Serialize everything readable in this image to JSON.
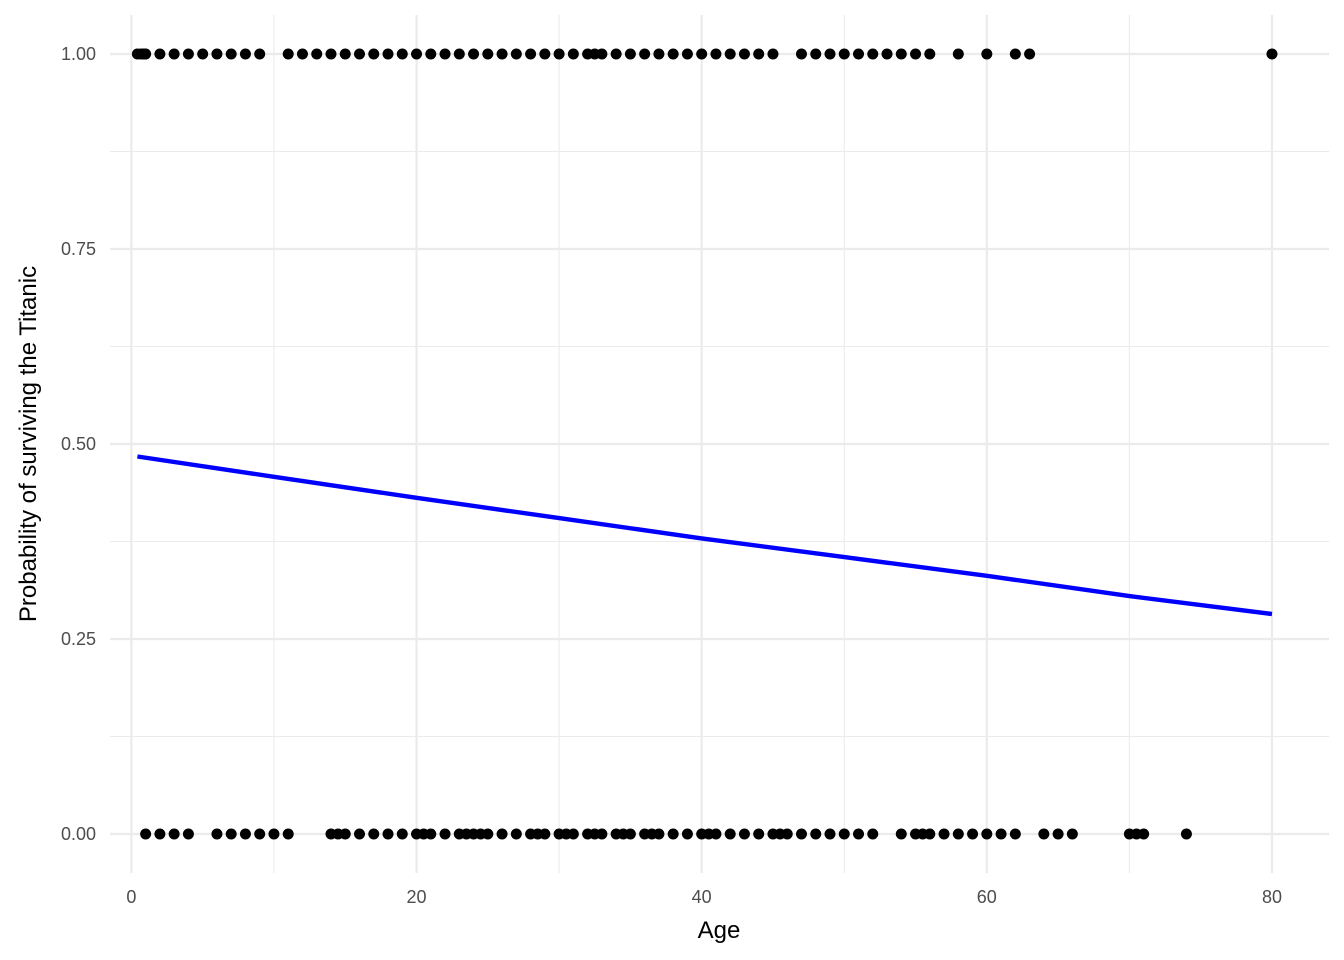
{
  "chart_data": {
    "type": "scatter",
    "title": "",
    "xlabel": "Age",
    "ylabel": "Probability of surviving the Titanic",
    "xlim": [
      -1.5,
      84
    ],
    "ylim": [
      -0.05,
      1.05
    ],
    "x_ticks": [
      0,
      20,
      40,
      60,
      80
    ],
    "x_tick_labels": [
      "0",
      "20",
      "40",
      "60",
      "80"
    ],
    "y_ticks": [
      0,
      0.25,
      0.5,
      0.75,
      1
    ],
    "y_tick_labels": [
      "0.00",
      "0.25",
      "0.50",
      "0.75",
      "1.00"
    ],
    "grid": true,
    "legend": "none",
    "colors": {
      "points": "#000000",
      "fit_line": "#0000ff",
      "grid": "#ebebeb",
      "background": "#ffffff"
    },
    "series": [
      {
        "type": "scatter",
        "x": [
          0.42,
          0.67,
          0.83,
          0.92,
          1,
          2,
          3,
          4,
          5,
          6,
          7,
          8,
          9,
          11,
          12,
          13,
          14,
          15,
          16,
          17,
          18,
          19,
          20,
          21,
          22,
          23,
          24,
          25,
          26,
          27,
          28,
          29,
          30,
          31,
          32,
          32.5,
          33,
          34,
          35,
          36,
          37,
          38,
          39,
          40,
          41,
          42,
          43,
          44,
          45,
          47,
          48,
          49,
          50,
          51,
          52,
          53,
          54,
          55,
          56,
          58,
          60,
          62,
          63,
          80
        ],
        "y": [
          1,
          1,
          1,
          1,
          1,
          1,
          1,
          1,
          1,
          1,
          1,
          1,
          1,
          1,
          1,
          1,
          1,
          1,
          1,
          1,
          1,
          1,
          1,
          1,
          1,
          1,
          1,
          1,
          1,
          1,
          1,
          1,
          1,
          1,
          1,
          1,
          1,
          1,
          1,
          1,
          1,
          1,
          1,
          1,
          1,
          1,
          1,
          1,
          1,
          1,
          1,
          1,
          1,
          1,
          1,
          1,
          1,
          1,
          1,
          1,
          1,
          1,
          1,
          1
        ]
      },
      {
        "type": "scatter",
        "x": [
          1,
          2,
          3,
          4,
          6,
          7,
          8,
          9,
          10,
          11,
          14,
          14.5,
          15,
          16,
          17,
          18,
          19,
          20,
          20.5,
          21,
          22,
          23,
          23.5,
          24,
          24.5,
          25,
          26,
          27,
          28,
          28.5,
          29,
          30,
          30.5,
          31,
          32,
          32.5,
          33,
          34,
          34.5,
          35,
          36,
          36.5,
          37,
          38,
          39,
          40,
          40.5,
          41,
          42,
          43,
          44,
          45,
          45.5,
          46,
          47,
          48,
          49,
          50,
          51,
          52,
          54,
          55,
          55.5,
          56,
          57,
          58,
          59,
          60,
          61,
          62,
          64,
          65,
          66,
          70,
          70.5,
          71,
          74
        ],
        "y": [
          0,
          0,
          0,
          0,
          0,
          0,
          0,
          0,
          0,
          0,
          0,
          0,
          0,
          0,
          0,
          0,
          0,
          0,
          0,
          0,
          0,
          0,
          0,
          0,
          0,
          0,
          0,
          0,
          0,
          0,
          0,
          0,
          0,
          0,
          0,
          0,
          0,
          0,
          0,
          0,
          0,
          0,
          0,
          0,
          0,
          0,
          0,
          0,
          0,
          0,
          0,
          0,
          0,
          0,
          0,
          0,
          0,
          0,
          0,
          0,
          0,
          0,
          0,
          0,
          0,
          0,
          0,
          0,
          0,
          0,
          0,
          0,
          0,
          0,
          0,
          0,
          0
        ]
      },
      {
        "type": "line",
        "x": [
          0.42,
          10,
          20,
          30,
          40,
          50,
          60,
          70,
          80
        ],
        "y": [
          0.484,
          0.458,
          0.431,
          0.405,
          0.379,
          0.355,
          0.331,
          0.305,
          0.282
        ]
      }
    ]
  }
}
